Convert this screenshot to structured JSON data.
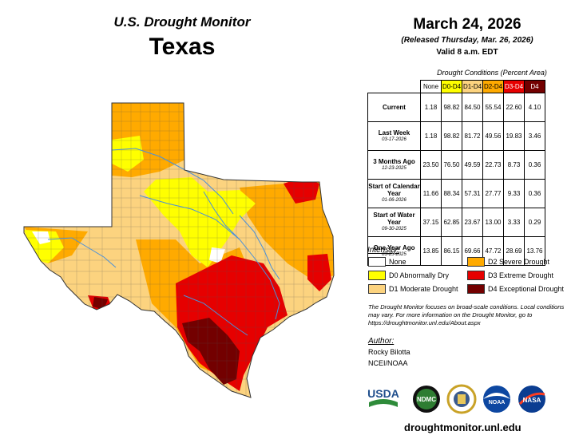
{
  "header": {
    "title": "U.S. Drought Monitor",
    "state": "Texas",
    "date": "March 24, 2026",
    "released": "(Released Thursday, Mar. 26, 2026)",
    "valid": "Valid 8 a.m. EDT"
  },
  "table": {
    "caption": "Drought Conditions (Percent Area)",
    "columns": [
      "None",
      "D0-D4",
      "D1-D4",
      "D2-D4",
      "D3-D4",
      "D4"
    ],
    "column_colors": [
      "#ffffff",
      "#ffff00",
      "#fcd37f",
      "#ffaa00",
      "#e60000",
      "#730000"
    ],
    "rows": [
      {
        "label": "Current",
        "date": "",
        "values": [
          "1.18",
          "98.82",
          "84.50",
          "55.54",
          "22.60",
          "4.10"
        ]
      },
      {
        "label": "Last Week",
        "date": "03-17-2026",
        "values": [
          "1.18",
          "98.82",
          "81.72",
          "49.56",
          "19.83",
          "3.46"
        ]
      },
      {
        "label": "3 Months Ago",
        "date": "12-23-2025",
        "values": [
          "23.50",
          "76.50",
          "49.59",
          "22.73",
          "8.73",
          "0.36"
        ]
      },
      {
        "label": "Start of Calendar Year",
        "date": "01-06-2026",
        "values": [
          "11.66",
          "88.34",
          "57.31",
          "27.77",
          "9.33",
          "0.36"
        ]
      },
      {
        "label": "Start of Water Year",
        "date": "09-30-2025",
        "values": [
          "37.15",
          "62.85",
          "23.67",
          "13.00",
          "3.33",
          "0.29"
        ]
      },
      {
        "label": "One Year Ago",
        "date": "03-25-2025",
        "values": [
          "13.85",
          "86.15",
          "69.66",
          "47.72",
          "28.69",
          "13.76"
        ]
      }
    ]
  },
  "legend": {
    "title": "Intensity:",
    "items": [
      {
        "label": "None",
        "color": "#ffffff"
      },
      {
        "label": "D0 Abnormally Dry",
        "color": "#ffff00"
      },
      {
        "label": "D1 Moderate Drought",
        "color": "#fcd37f"
      },
      {
        "label": "D2 Severe Drought",
        "color": "#ffaa00"
      },
      {
        "label": "D3 Extreme Drought",
        "color": "#e60000"
      },
      {
        "label": "D4 Exceptional Drought",
        "color": "#730000"
      }
    ]
  },
  "note": "The Drought Monitor focuses on broad-scale conditions. Local conditions may vary. For more information on the Drought Monitor, go to https://droughtmonitor.unl.edu/About.aspx",
  "author": {
    "heading": "Author:",
    "name": "Rocky Bilotta",
    "org": "NCEI/NOAA"
  },
  "logos": {
    "usda": "USDA",
    "ndmc": "NDMC",
    "noaa": "NOAA",
    "nasa": "NASA"
  },
  "site": "droughtmonitor.unl.edu"
}
